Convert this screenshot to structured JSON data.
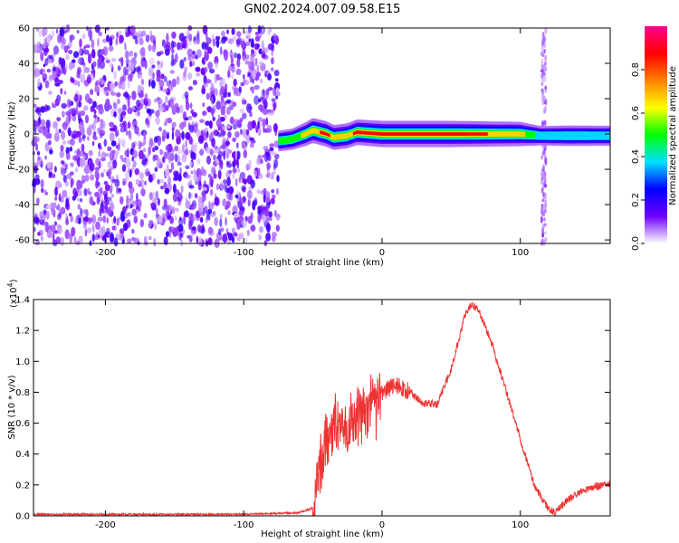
{
  "title": "GN02.2024.007.09.58.E15",
  "chart_data": [
    {
      "type": "heatmap",
      "xlabel": "Height of straight line (km)",
      "ylabel": "Frequency (Hz)",
      "xlim": [
        -252,
        165
      ],
      "ylim": [
        -62,
        60
      ],
      "xticks": [
        -200,
        -100,
        0,
        100
      ],
      "yticks": [
        -60,
        -40,
        -20,
        0,
        20,
        40,
        60
      ],
      "colorbar": {
        "label": "Normalized spectral amplitude",
        "range": [
          0.0,
          1.0
        ],
        "ticks": [
          "0.0",
          "0.2",
          "0.4",
          "0.6",
          "0.8"
        ],
        "colormap": [
          "#ffffff",
          "#7000ff",
          "#0000ff",
          "#00e0ff",
          "#00ff00",
          "#ffff00",
          "#ff8000",
          "#ff0000",
          "#ff0090"
        ]
      },
      "noise_region_x": [
        -252,
        -75
      ],
      "ridge": [
        {
          "x": -75,
          "y": -4,
          "amp": 0.45
        },
        {
          "x": -65,
          "y": -3,
          "amp": 0.5
        },
        {
          "x": -55,
          "y": 0,
          "amp": 0.7
        },
        {
          "x": -50,
          "y": 2,
          "amp": 0.8
        },
        {
          "x": -40,
          "y": 0,
          "amp": 0.85
        },
        {
          "x": -35,
          "y": -2,
          "amp": 0.8
        },
        {
          "x": -25,
          "y": -1,
          "amp": 0.8
        },
        {
          "x": -18,
          "y": 1,
          "amp": 0.85
        },
        {
          "x": 0,
          "y": 0,
          "amp": 0.9
        },
        {
          "x": 50,
          "y": 0,
          "amp": 0.9
        },
        {
          "x": 100,
          "y": 0,
          "amp": 0.75
        },
        {
          "x": 115,
          "y": -1,
          "amp": 0.35
        },
        {
          "x": 135,
          "y": -1,
          "amp": 0.45
        },
        {
          "x": 165,
          "y": -1,
          "amp": 0.4
        }
      ],
      "vertical_streak_x": 117
    },
    {
      "type": "line",
      "xlabel": "Height of straight line (km)",
      "ylabel": "SNR (10 * v/v)",
      "exponent_label": "(x10",
      "exponent_sup": "4",
      "exponent_close": ")",
      "xlim": [
        -252,
        165
      ],
      "ylim": [
        0,
        1.4
      ],
      "xticks": [
        -200,
        -100,
        0,
        100
      ],
      "yticks": [
        "0.0",
        "0.2",
        "0.4",
        "0.6",
        "0.8",
        "1.0",
        "1.2",
        "1.4"
      ],
      "color": "#ee3333",
      "series": [
        {
          "x": [
            -252,
            -200,
            -150,
            -100,
            -60,
            -50,
            -45,
            -40,
            -30,
            -20,
            -10,
            0,
            10,
            20,
            30,
            40,
            50,
            60,
            65,
            70,
            80,
            90,
            100,
            110,
            120,
            125,
            130,
            140,
            150,
            165
          ],
          "y": [
            0.01,
            0.01,
            0.01,
            0.01,
            0.02,
            0.05,
            0.3,
            0.5,
            0.55,
            0.62,
            0.68,
            0.8,
            0.85,
            0.8,
            0.73,
            0.72,
            0.95,
            1.3,
            1.37,
            1.33,
            1.1,
            0.8,
            0.5,
            0.2,
            0.05,
            0.02,
            0.07,
            0.14,
            0.18,
            0.21
          ]
        }
      ]
    }
  ]
}
